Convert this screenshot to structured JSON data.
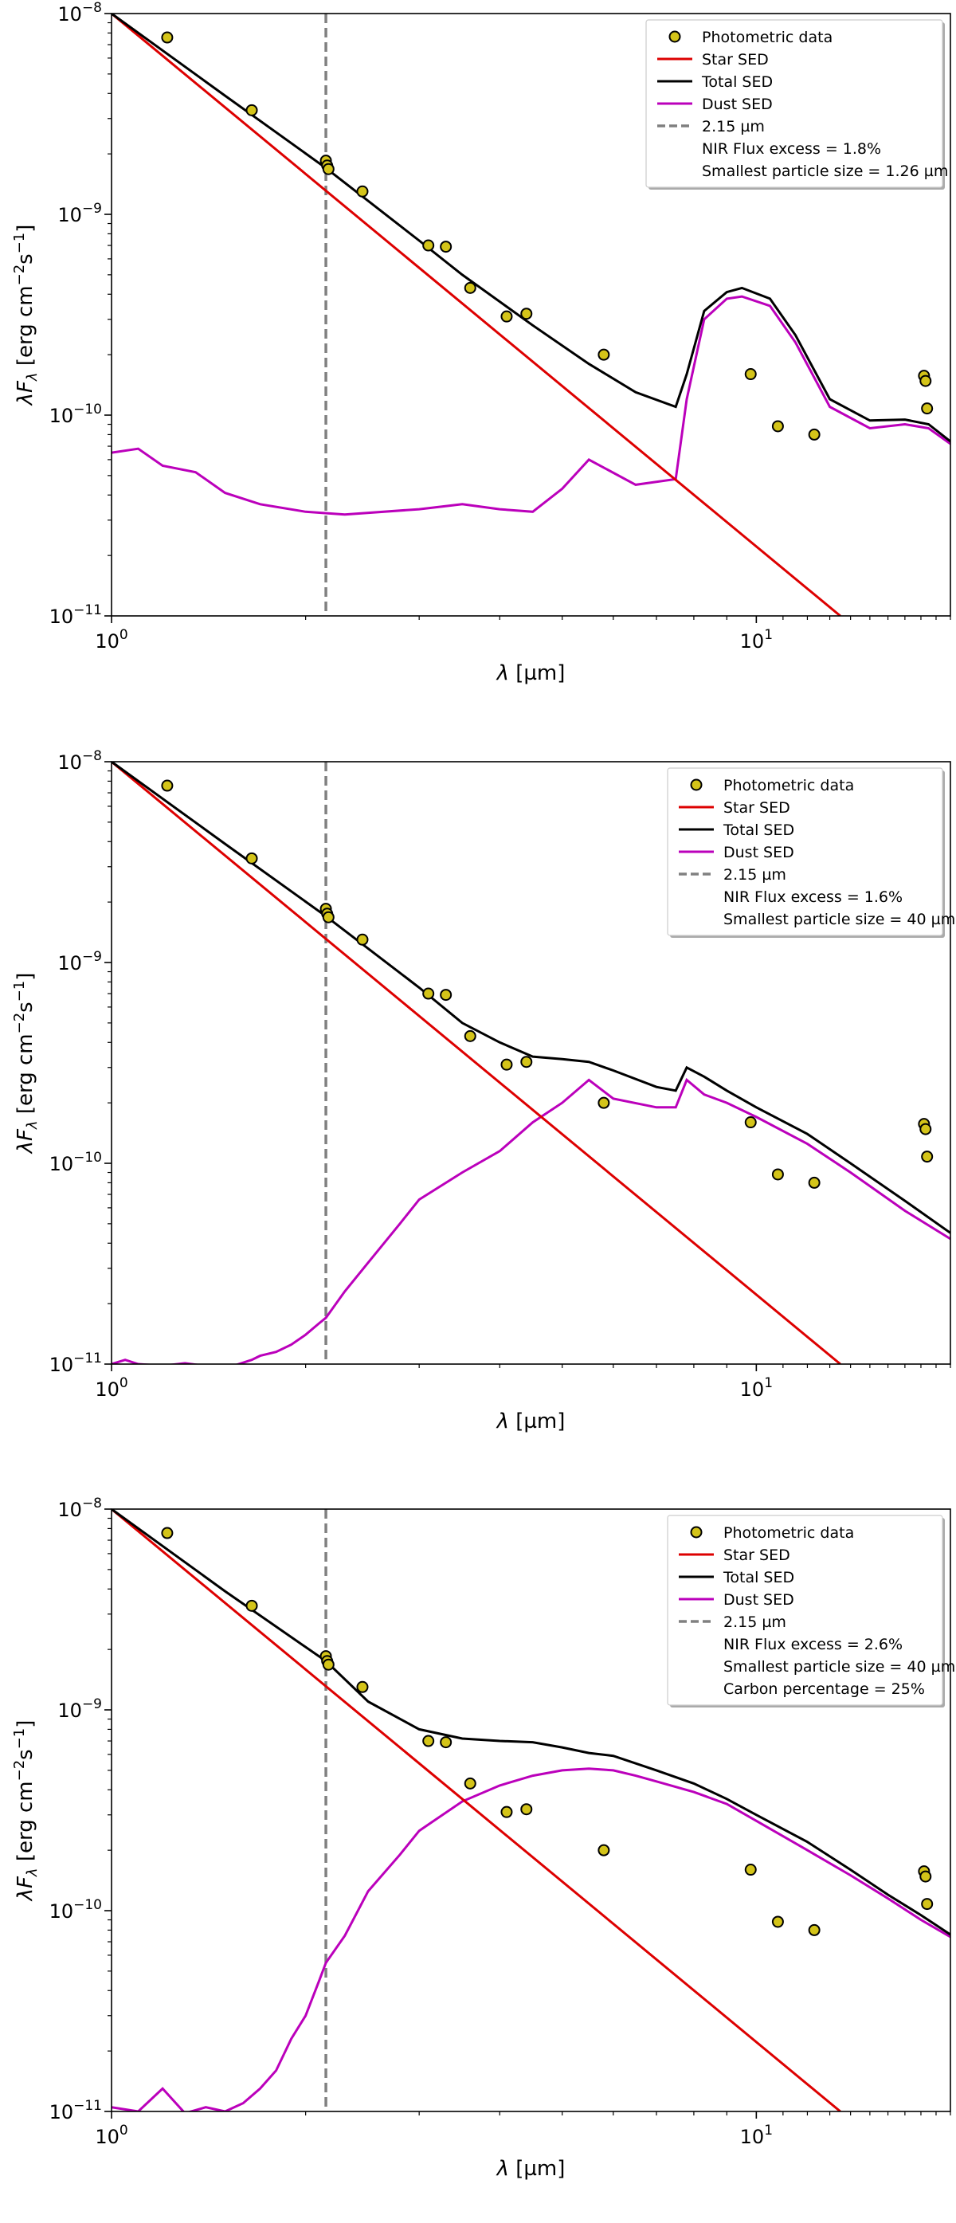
{
  "colors": {
    "star": "#dd0000",
    "total": "#000000",
    "dust": "#bb00bb",
    "marker": "#d4c419",
    "vline": "#808080"
  },
  "chart_data": [
    {
      "type": "line",
      "xscale": "log",
      "yscale": "log",
      "xlim": [
        1.0,
        20.0
      ],
      "ylim": [
        1e-11,
        1e-08
      ],
      "xlabel": "λ [µm]",
      "ylabel": "λF_λ [erg cm⁻²s⁻¹]",
      "xtick_labels": [
        "10^0",
        "10^1"
      ],
      "ytick_labels": [
        "10^-11",
        "10^-10",
        "10^-9",
        "10^-8"
      ],
      "vline": 2.15,
      "legend_position": "top-right",
      "legend": [
        "Photometric data",
        "Star SED",
        "Total SED",
        "Dust SED",
        "2.15 µm",
        "NIR Flux excess = 1.8%",
        "Smallest particle size = 1.26 µm"
      ],
      "photometric": {
        "x": [
          1.22,
          1.65,
          2.15,
          2.16,
          2.17,
          2.45,
          3.1,
          3.3,
          3.6,
          4.1,
          4.4,
          5.8,
          9.8,
          10.8,
          12.3,
          18.2,
          18.3,
          18.4
        ],
        "y": [
          7.6e-09,
          3.3e-09,
          1.85e-09,
          1.75e-09,
          1.68e-09,
          1.3e-09,
          7e-10,
          6.9e-10,
          4.3e-10,
          3.1e-10,
          3.2e-10,
          2e-10,
          1.6e-10,
          8.8e-11,
          8e-11,
          1.57e-10,
          1.48e-10,
          1.08e-10
        ]
      },
      "star": {
        "x": [
          1.0,
          13.5
        ],
        "y": [
          1e-08,
          1e-11
        ]
      },
      "total": {
        "x": [
          1.0,
          1.5,
          2.15,
          3.0,
          3.5,
          4.5,
          5.5,
          6.5,
          7.5,
          7.8,
          8.3,
          9.0,
          9.5,
          10.5,
          11.5,
          13.0,
          15.0,
          17.0,
          18.5,
          20.0
        ],
        "y": [
          1e-08,
          3.9e-09,
          1.7e-09,
          7.4e-10,
          5e-10,
          2.8e-10,
          1.8e-10,
          1.3e-10,
          1.1e-10,
          1.6e-10,
          3.3e-10,
          4.1e-10,
          4.3e-10,
          3.8e-10,
          2.5e-10,
          1.2e-10,
          9.4e-11,
          9.5e-11,
          9e-11,
          7.4e-11
        ]
      },
      "dust": {
        "x": [
          1.0,
          1.1,
          1.2,
          1.35,
          1.5,
          1.7,
          2.0,
          2.3,
          3.0,
          3.5,
          4.0,
          4.5,
          5.0,
          5.5,
          6.5,
          7.5,
          7.8,
          8.3,
          9.0,
          9.5,
          10.5,
          11.5,
          13.0,
          15.0,
          17.0,
          18.5,
          20.0
        ],
        "y": [
          6.5e-11,
          6.8e-11,
          5.6e-11,
          5.2e-11,
          4.1e-11,
          3.6e-11,
          3.3e-11,
          3.2e-11,
          3.4e-11,
          3.6e-11,
          3.4e-11,
          3.3e-11,
          4.3e-11,
          6e-11,
          4.5e-11,
          4.8e-11,
          1.2e-10,
          3e-10,
          3.8e-10,
          3.9e-10,
          3.5e-10,
          2.3e-10,
          1.1e-10,
          8.6e-11,
          9e-11,
          8.6e-11,
          7.2e-11
        ]
      }
    },
    {
      "type": "line",
      "xscale": "log",
      "yscale": "log",
      "xlim": [
        1.0,
        20.0
      ],
      "ylim": [
        1e-11,
        1e-08
      ],
      "xlabel": "λ [µm]",
      "ylabel": "λF_λ [erg cm⁻²s⁻¹]",
      "xtick_labels": [
        "10^0",
        "10^1"
      ],
      "ytick_labels": [
        "10^-11",
        "10^-10",
        "10^-9",
        "10^-8"
      ],
      "vline": 2.15,
      "legend_position": "top-right",
      "legend": [
        "Photometric data",
        "Star SED",
        "Total SED",
        "Dust SED",
        "2.15 µm",
        "NIR Flux excess = 1.6%",
        "Smallest particle size = 40 µm"
      ],
      "photometric": {
        "x": [
          1.22,
          1.65,
          2.15,
          2.16,
          2.17,
          2.45,
          3.1,
          3.3,
          3.6,
          4.1,
          4.4,
          5.8,
          9.8,
          10.8,
          12.3,
          18.2,
          18.3,
          18.4
        ],
        "y": [
          7.6e-09,
          3.3e-09,
          1.85e-09,
          1.75e-09,
          1.68e-09,
          1.3e-09,
          7e-10,
          6.9e-10,
          4.3e-10,
          3.1e-10,
          3.2e-10,
          2e-10,
          1.6e-10,
          8.8e-11,
          8e-11,
          1.57e-10,
          1.48e-10,
          1.08e-10
        ]
      },
      "star": {
        "x": [
          1.0,
          13.5
        ],
        "y": [
          1e-08,
          1e-11
        ]
      },
      "total": {
        "x": [
          1.0,
          1.5,
          2.15,
          3.0,
          3.5,
          4.0,
          4.5,
          5.0,
          5.5,
          6.0,
          7.0,
          7.5,
          7.8,
          8.3,
          9.0,
          10.0,
          12.0,
          14.0,
          17.0,
          20.0
        ],
        "y": [
          1e-08,
          3.9e-09,
          1.7e-09,
          7.5e-10,
          5e-10,
          4e-10,
          3.4e-10,
          3.3e-10,
          3.2e-10,
          2.9e-10,
          2.4e-10,
          2.3e-10,
          3e-10,
          2.7e-10,
          2.3e-10,
          1.9e-10,
          1.4e-10,
          1e-10,
          6.5e-11,
          4.5e-11
        ]
      },
      "dust": {
        "x": [
          1.0,
          1.05,
          1.1,
          1.2,
          1.3,
          1.5,
          1.65,
          1.7,
          1.8,
          1.9,
          2.0,
          2.1,
          2.15,
          2.3,
          2.5,
          2.8,
          3.0,
          3.5,
          4.0,
          4.5,
          5.0,
          5.5,
          6.0,
          7.0,
          7.5,
          7.8,
          8.3,
          9.0,
          10.0,
          12.0,
          14.0,
          17.0,
          20.0
        ],
        "y": [
          1e-11,
          1.05e-11,
          1e-11,
          9.8e-12,
          1.01e-11,
          9.5e-12,
          1.05e-11,
          1.1e-11,
          1.15e-11,
          1.25e-11,
          1.4e-11,
          1.6e-11,
          1.7e-11,
          2.3e-11,
          3.2e-11,
          5e-11,
          6.6e-11,
          9e-11,
          1.15e-10,
          1.6e-10,
          2e-10,
          2.6e-10,
          2.1e-10,
          1.9e-10,
          1.9e-10,
          2.6e-10,
          2.2e-10,
          2e-10,
          1.7e-10,
          1.25e-10,
          9e-11,
          5.8e-11,
          4.2e-11
        ]
      }
    },
    {
      "type": "line",
      "xscale": "log",
      "yscale": "log",
      "xlim": [
        1.0,
        20.0
      ],
      "ylim": [
        1e-11,
        1e-08
      ],
      "xlabel": "λ [µm]",
      "ylabel": "λF_λ [erg cm⁻²s⁻¹]",
      "xtick_labels": [
        "10^0",
        "10^1"
      ],
      "ytick_labels": [
        "10^-11",
        "10^-10",
        "10^-9",
        "10^-8"
      ],
      "vline": 2.15,
      "legend_position": "top-right",
      "legend": [
        "Photometric data",
        "Star SED",
        "Total SED",
        "Dust SED",
        "2.15 µm",
        "NIR Flux excess = 2.6%",
        "Smallest particle size = 40 µm",
        "Carbon percentage = 25%"
      ],
      "photometric": {
        "x": [
          1.22,
          1.65,
          2.15,
          2.16,
          2.17,
          2.45,
          3.1,
          3.3,
          3.6,
          4.1,
          4.4,
          5.8,
          9.8,
          10.8,
          12.3,
          18.2,
          18.3,
          18.4
        ],
        "y": [
          7.6e-09,
          3.3e-09,
          1.85e-09,
          1.75e-09,
          1.68e-09,
          1.3e-09,
          7e-10,
          6.9e-10,
          4.3e-10,
          3.1e-10,
          3.2e-10,
          2e-10,
          1.6e-10,
          8.8e-11,
          8e-11,
          1.57e-10,
          1.48e-10,
          1.08e-10
        ]
      },
      "star": {
        "x": [
          1.0,
          13.5
        ],
        "y": [
          1e-08,
          1e-11
        ]
      },
      "total": {
        "x": [
          1.0,
          1.5,
          2.15,
          2.5,
          3.0,
          3.5,
          4.0,
          4.5,
          5.0,
          5.5,
          6.0,
          7.0,
          8.0,
          9.0,
          10.0,
          12.0,
          14.0,
          16.0,
          18.0,
          20.0
        ],
        "y": [
          1e-08,
          3.9e-09,
          1.75e-09,
          1.1e-09,
          8e-10,
          7.2e-10,
          7e-10,
          6.9e-10,
          6.5e-10,
          6.1e-10,
          5.9e-10,
          5e-10,
          4.3e-10,
          3.6e-10,
          3e-10,
          2.2e-10,
          1.6e-10,
          1.2e-10,
          9.5e-11,
          7.6e-11
        ]
      },
      "dust": {
        "x": [
          1.0,
          1.1,
          1.2,
          1.3,
          1.4,
          1.5,
          1.6,
          1.7,
          1.8,
          1.9,
          2.0,
          2.1,
          2.15,
          2.3,
          2.5,
          2.8,
          3.0,
          3.5,
          4.0,
          4.5,
          5.0,
          5.5,
          6.0,
          6.5,
          7.0,
          8.0,
          9.0,
          10.0,
          12.0,
          14.0,
          16.0,
          18.0,
          20.0
        ],
        "y": [
          1.05e-11,
          1e-11,
          1.3e-11,
          9.8e-12,
          1.05e-11,
          1e-11,
          1.1e-11,
          1.3e-11,
          1.6e-11,
          2.3e-11,
          3e-11,
          4.5e-11,
          5.5e-11,
          7.5e-11,
          1.25e-10,
          1.9e-10,
          2.5e-10,
          3.5e-10,
          4.2e-10,
          4.7e-10,
          5e-10,
          5.1e-10,
          5e-10,
          4.7e-10,
          4.4e-10,
          3.9e-10,
          3.4e-10,
          2.8e-10,
          2e-10,
          1.5e-10,
          1.15e-10,
          9e-11,
          7.4e-11
        ]
      }
    }
  ]
}
